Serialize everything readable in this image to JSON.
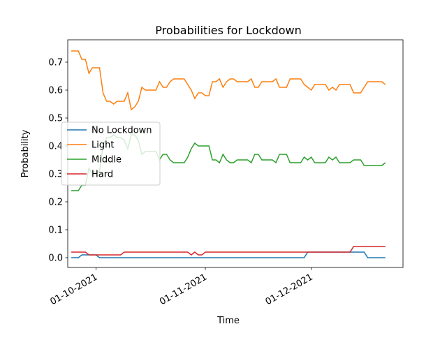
{
  "chart_data": {
    "type": "line",
    "title": "Probabilities for Lockdown",
    "x_label": "Time",
    "y_label": "Probability",
    "x": [
      "2021-09-24",
      "2021-09-25",
      "2021-09-26",
      "2021-09-27",
      "2021-09-28",
      "2021-09-29",
      "2021-09-30",
      "2021-10-01",
      "2021-10-02",
      "2021-10-03",
      "2021-10-04",
      "2021-10-05",
      "2021-10-06",
      "2021-10-07",
      "2021-10-08",
      "2021-10-09",
      "2021-10-10",
      "2021-10-11",
      "2021-10-12",
      "2021-10-13",
      "2021-10-14",
      "2021-10-15",
      "2021-10-16",
      "2021-10-17",
      "2021-10-18",
      "2021-10-19",
      "2021-10-20",
      "2021-10-21",
      "2021-10-22",
      "2021-10-23",
      "2021-10-24",
      "2021-10-25",
      "2021-10-26",
      "2021-10-27",
      "2021-10-28",
      "2021-10-29",
      "2021-10-30",
      "2021-10-31",
      "2021-11-01",
      "2021-11-02",
      "2021-11-03",
      "2021-11-04",
      "2021-11-05",
      "2021-11-06",
      "2021-11-07",
      "2021-11-08",
      "2021-11-09",
      "2021-11-10",
      "2021-11-11",
      "2021-11-12",
      "2021-11-13",
      "2021-11-14",
      "2021-11-15",
      "2021-11-16",
      "2021-11-17",
      "2021-11-18",
      "2021-11-19",
      "2021-11-20",
      "2021-11-21",
      "2021-11-22",
      "2021-11-23",
      "2021-11-24",
      "2021-11-25",
      "2021-11-26",
      "2021-11-27",
      "2021-11-28",
      "2021-11-29",
      "2021-11-30",
      "2021-12-01",
      "2021-12-02",
      "2021-12-03",
      "2021-12-04",
      "2021-12-05",
      "2021-12-06",
      "2021-12-07",
      "2021-12-08",
      "2021-12-09",
      "2021-12-10",
      "2021-12-11",
      "2021-12-12",
      "2021-12-13",
      "2021-12-14",
      "2021-12-15",
      "2021-12-16",
      "2021-12-17",
      "2021-12-18",
      "2021-12-19",
      "2021-12-20",
      "2021-12-21",
      "2021-12-22"
    ],
    "series": [
      {
        "name": "No Lockdown",
        "color": "#1f77b4",
        "values": [
          0,
          0,
          0,
          0.01,
          0.01,
          0.01,
          0.01,
          0.01,
          0,
          0,
          0,
          0,
          0,
          0,
          0,
          0,
          0,
          0,
          0,
          0,
          0,
          0,
          0,
          0,
          0,
          0,
          0,
          0,
          0,
          0,
          0,
          0,
          0,
          0,
          0,
          0,
          0,
          0,
          0,
          0,
          0,
          0,
          0,
          0,
          0,
          0,
          0,
          0,
          0,
          0,
          0,
          0,
          0,
          0,
          0,
          0,
          0,
          0,
          0,
          0,
          0,
          0,
          0,
          0,
          0,
          0,
          0,
          0.02,
          0.02,
          0.02,
          0.02,
          0.02,
          0.02,
          0.02,
          0.02,
          0.02,
          0.02,
          0.02,
          0.02,
          0.02,
          0.02,
          0.02,
          0.02,
          0.02,
          0,
          0,
          0,
          0,
          0,
          0
        ]
      },
      {
        "name": "Light",
        "color": "#ff7f0e",
        "values": [
          0.74,
          0.74,
          0.74,
          0.71,
          0.71,
          0.66,
          0.68,
          0.68,
          0.68,
          0.59,
          0.56,
          0.56,
          0.55,
          0.56,
          0.56,
          0.56,
          0.59,
          0.53,
          0.54,
          0.56,
          0.61,
          0.6,
          0.6,
          0.6,
          0.6,
          0.63,
          0.61,
          0.61,
          0.63,
          0.64,
          0.64,
          0.64,
          0.64,
          0.62,
          0.6,
          0.57,
          0.59,
          0.59,
          0.58,
          0.58,
          0.63,
          0.63,
          0.64,
          0.61,
          0.63,
          0.64,
          0.64,
          0.63,
          0.63,
          0.63,
          0.63,
          0.64,
          0.61,
          0.61,
          0.63,
          0.63,
          0.63,
          0.63,
          0.64,
          0.61,
          0.61,
          0.61,
          0.64,
          0.64,
          0.64,
          0.64,
          0.62,
          0.61,
          0.6,
          0.62,
          0.62,
          0.62,
          0.62,
          0.6,
          0.61,
          0.6,
          0.62,
          0.62,
          0.62,
          0.62,
          0.59,
          0.59,
          0.59,
          0.61,
          0.63,
          0.63,
          0.63,
          0.63,
          0.63,
          0.62
        ]
      },
      {
        "name": "Middle",
        "color": "#2ca02c",
        "values": [
          0.24,
          0.24,
          0.24,
          0.26,
          0.26,
          0.32,
          0.3,
          0.3,
          0.31,
          0.4,
          0.43,
          0.43,
          0.44,
          0.43,
          0.43,
          0.42,
          0.39,
          0.44,
          0.44,
          0.42,
          0.37,
          0.38,
          0.38,
          0.38,
          0.38,
          0.35,
          0.37,
          0.37,
          0.35,
          0.34,
          0.34,
          0.34,
          0.34,
          0.36,
          0.39,
          0.41,
          0.4,
          0.4,
          0.4,
          0.4,
          0.35,
          0.35,
          0.34,
          0.37,
          0.35,
          0.34,
          0.34,
          0.35,
          0.35,
          0.35,
          0.35,
          0.34,
          0.37,
          0.37,
          0.35,
          0.35,
          0.35,
          0.35,
          0.34,
          0.37,
          0.37,
          0.37,
          0.34,
          0.34,
          0.34,
          0.34,
          0.36,
          0.35,
          0.36,
          0.34,
          0.34,
          0.34,
          0.34,
          0.36,
          0.35,
          0.36,
          0.34,
          0.34,
          0.34,
          0.34,
          0.35,
          0.35,
          0.35,
          0.33,
          0.33,
          0.33,
          0.33,
          0.33,
          0.33,
          0.34
        ]
      },
      {
        "name": "Hard",
        "color": "#d62728",
        "values": [
          0.02,
          0.02,
          0.02,
          0.02,
          0.02,
          0.01,
          0.01,
          0.01,
          0.01,
          0.01,
          0.01,
          0.01,
          0.01,
          0.01,
          0.01,
          0.02,
          0.02,
          0.02,
          0.02,
          0.02,
          0.02,
          0.02,
          0.02,
          0.02,
          0.02,
          0.02,
          0.02,
          0.02,
          0.02,
          0.02,
          0.02,
          0.02,
          0.02,
          0.02,
          0.01,
          0.02,
          0.01,
          0.01,
          0.02,
          0.02,
          0.02,
          0.02,
          0.02,
          0.02,
          0.02,
          0.02,
          0.02,
          0.02,
          0.02,
          0.02,
          0.02,
          0.02,
          0.02,
          0.02,
          0.02,
          0.02,
          0.02,
          0.02,
          0.02,
          0.02,
          0.02,
          0.02,
          0.02,
          0.02,
          0.02,
          0.02,
          0.02,
          0.02,
          0.02,
          0.02,
          0.02,
          0.02,
          0.02,
          0.02,
          0.02,
          0.02,
          0.02,
          0.02,
          0.02,
          0.02,
          0.04,
          0.04,
          0.04,
          0.04,
          0.04,
          0.04,
          0.04,
          0.04,
          0.04,
          0.04
        ]
      }
    ],
    "xlim": [
      "2021-09-23",
      "2021-12-27"
    ],
    "xticks": [
      {
        "value": "2021-10-01",
        "label": "01-10-2021"
      },
      {
        "value": "2021-11-01",
        "label": "01-11-2021"
      },
      {
        "value": "2021-12-01",
        "label": "01-12-2021"
      }
    ],
    "ylim": [
      -0.035,
      0.78
    ],
    "yticks": [
      {
        "value": 0,
        "label": "0.0"
      },
      0.1,
      0.2,
      0.3,
      0.4,
      0.5,
      0.6,
      0.7
    ],
    "legend": "center left",
    "grid": false
  }
}
